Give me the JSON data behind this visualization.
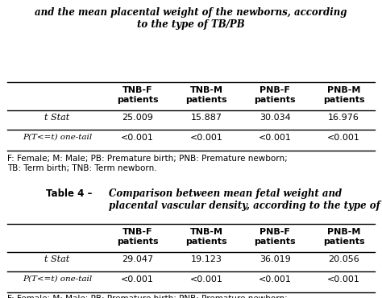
{
  "top_title": "and the mean placental weight of the newborns, according\nto the type of TB/PB",
  "table4_title_bold": "Table 4 – ",
  "table4_title_italic": "Comparison between mean fetal weight and\nplacental vascular density, according to the type of TB/PB",
  "col_headers": [
    "TNB-F\npatients",
    "TNB-M\npatients",
    "PNB-F\npatients",
    "PNB-M\npatients"
  ],
  "data_1": [
    [
      "25.009",
      "15.887",
      "30.034",
      "16.976"
    ],
    [
      "<0.001",
      "<0.001",
      "<0.001",
      "<0.001"
    ]
  ],
  "data_2": [
    [
      "29.047",
      "19.123",
      "36.019",
      "20.056"
    ],
    [
      "<0.001",
      "<0.001",
      "<0.001",
      "<0.001"
    ]
  ],
  "footnote": "F: Female; M: Male; PB: Premature birth; PNB: Premature newborn;\nTB: Term birth; TNB: Term newborn.",
  "bg_color": "#ffffff",
  "text_color": "#000000"
}
